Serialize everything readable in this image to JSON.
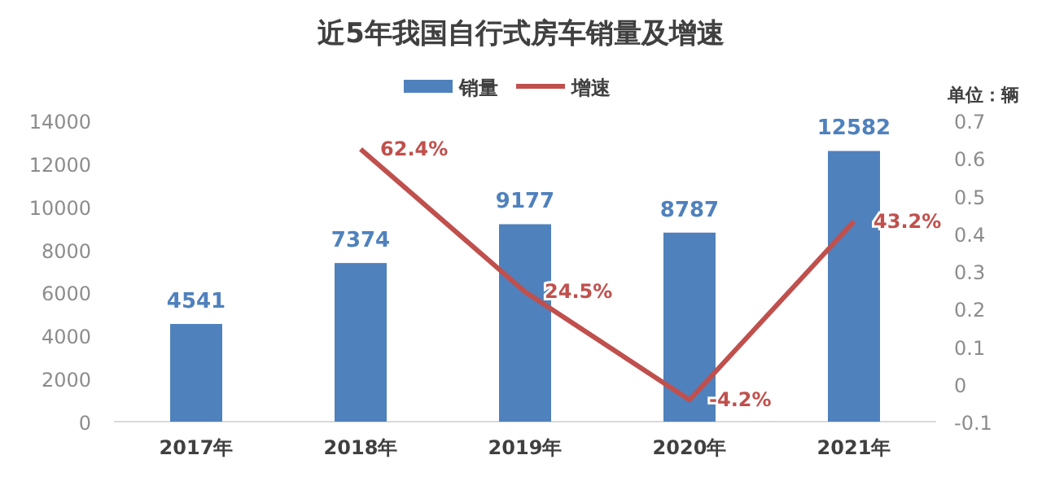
{
  "chart_data": {
    "type": "bar",
    "title": "近5年我国自行式房车销量及增速",
    "categories": [
      "2017年",
      "2018年",
      "2019年",
      "2020年",
      "2021年"
    ],
    "series": [
      {
        "name": "销量",
        "type": "bar",
        "color": "#4f81bd",
        "values": [
          4541,
          7374,
          9177,
          8787,
          12582
        ],
        "value_labels": [
          "4541",
          "7374",
          "9177",
          "8787",
          "12582"
        ]
      },
      {
        "name": "增速",
        "type": "line",
        "axis": "y2",
        "color": "#c0504d",
        "values": [
          null,
          0.624,
          0.245,
          -0.042,
          0.432
        ],
        "value_labels": [
          null,
          "62.4%",
          "24.5%",
          "-4.2%",
          "43.2%"
        ]
      }
    ],
    "ylim": [
      0,
      14000
    ],
    "yticks": [
      0,
      2000,
      4000,
      6000,
      8000,
      10000,
      12000,
      14000
    ],
    "y2lim": [
      -0.1,
      0.7
    ],
    "y2ticks": [
      -0.1,
      0,
      0.1,
      0.2,
      0.3,
      0.4,
      0.5,
      0.6,
      0.7
    ],
    "legend": "top",
    "annotations": [
      "单位：辆"
    ]
  }
}
